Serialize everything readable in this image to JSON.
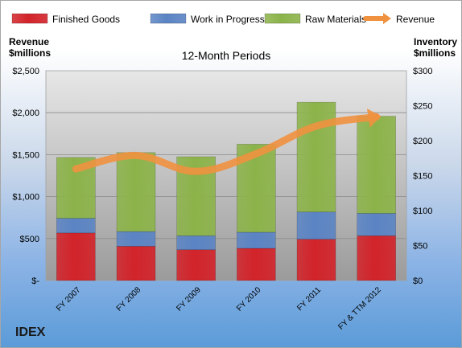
{
  "company": "IDEX",
  "left_axis_title_line1": "Revenue",
  "left_axis_title_line2": "$millions",
  "right_axis_title_line1": "Inventory",
  "right_axis_title_line2": "$millions",
  "chart_data": {
    "type": "bar",
    "stacked": true,
    "title": "12-Month Periods",
    "categories": [
      "FY 2007",
      "FY 2008",
      "FY 2009",
      "FY 2010",
      "FY 2011",
      "FY & TTM 2012"
    ],
    "series": [
      {
        "name": "Finished Goods",
        "axis": "right",
        "color": "#d2232a",
        "values": [
          68,
          49,
          44,
          46,
          59,
          64
        ]
      },
      {
        "name": "Work in Progress",
        "axis": "right",
        "color": "#5b84c4",
        "values": [
          21,
          21,
          20,
          23,
          39,
          32
        ]
      },
      {
        "name": "Raw Materials",
        "axis": "right",
        "color": "#8cb34a",
        "values": [
          87,
          113,
          113,
          126,
          157,
          139
        ]
      },
      {
        "name": "Revenue",
        "axis": "left",
        "type": "line",
        "color": "#f0913f",
        "values": [
          1330,
          1490,
          1300,
          1510,
          1840,
          1950
        ]
      }
    ],
    "left_axis": {
      "min": 0,
      "max": 2500,
      "ticks": [
        "$-",
        "$500",
        "$1,000",
        "$1,500",
        "$2,000",
        "$2,500"
      ]
    },
    "right_axis": {
      "min": 0,
      "max": 300,
      "ticks": [
        "$0",
        "$50",
        "$100",
        "$150",
        "$200",
        "$250",
        "$300"
      ]
    },
    "legend_position": "top",
    "grid": true
  }
}
